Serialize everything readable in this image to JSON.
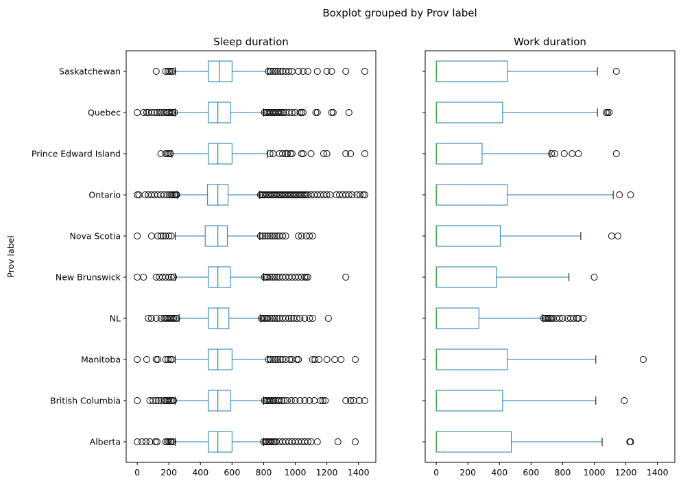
{
  "chart_data": {
    "type": "boxplot",
    "suptitle": "Boxplot grouped by Prov label",
    "ylabel": "Prov label",
    "categories": [
      "Alberta",
      "British Columbia",
      "Manitoba",
      "NL",
      "New Brunswick",
      "Nova Scotia",
      "Ontario",
      "Prince Edward Island",
      "Quebec",
      "Saskatchewan"
    ],
    "xticks": [
      0,
      200,
      400,
      600,
      800,
      1000,
      1200,
      1400
    ],
    "colors": {
      "box": "#1f77b4",
      "median": "#2ca02c",
      "outlier": "#000000"
    },
    "panels": [
      {
        "title": "Sleep duration",
        "xlim": [
          -70,
          1510
        ],
        "boxes": [
          {
            "q1": 450,
            "median": 510,
            "q3": 600,
            "whislo": 240,
            "whishi": 800,
            "fliers": [
              0,
              30,
              55,
              80,
              115,
              125,
              180,
              190,
              200,
              210,
              215,
              225,
              800,
              810,
              820,
              830,
              840,
              850,
              860,
              870,
              880,
              900,
              920,
              940,
              960,
              980,
              1000,
              1020,
              1040,
              1060,
              1080,
              1100,
              1140,
              1270,
              1380
            ]
          },
          {
            "q1": 450,
            "median": 510,
            "q3": 590,
            "whislo": 240,
            "whishi": 800,
            "fliers": [
              0,
              80,
              100,
              120,
              135,
              150,
              170,
              180,
              190,
              200,
              210,
              220,
              230,
              805,
              815,
              825,
              835,
              845,
              855,
              865,
              875,
              890,
              900,
              915,
              930,
              950,
              975,
              1000,
              1030,
              1060,
              1090,
              1120,
              1160,
              1175,
              1190,
              1320,
              1350,
              1370,
              1405,
              1440
            ]
          },
          {
            "q1": 450,
            "median": 510,
            "q3": 600,
            "whislo": 240,
            "whishi": 825,
            "fliers": [
              0,
              60,
              120,
              130,
              180,
              195,
              210,
              220,
              830,
              845,
              860,
              875,
              890,
              905,
              920,
              940,
              965,
              980,
              1010,
              1020,
              1110,
              1125,
              1150,
              1200,
              1250,
              1290,
              1380
            ]
          },
          {
            "q1": 450,
            "median": 510,
            "q3": 580,
            "whislo": 265,
            "whishi": 780,
            "fliers": [
              70,
              90,
              120,
              150,
              170,
              180,
              190,
              200,
              210,
              220,
              230,
              240,
              250,
              785,
              795,
              805,
              815,
              825,
              840,
              855,
              870,
              885,
              900,
              920,
              940,
              960,
              975,
              990,
              1010,
              1030,
              1060,
              1090,
              1110,
              1210
            ]
          },
          {
            "q1": 450,
            "median": 510,
            "q3": 590,
            "whislo": 240,
            "whishi": 800,
            "fliers": [
              0,
              40,
              120,
              140,
              160,
              180,
              200,
              215,
              230,
              805,
              815,
              825,
              840,
              855,
              870,
              885,
              900,
              920,
              940,
              960,
              980,
              1000,
              1020,
              1040,
              1060,
              1070,
              1080,
              1320
            ]
          },
          {
            "q1": 430,
            "median": 510,
            "q3": 570,
            "whislo": 240,
            "whishi": 775,
            "fliers": [
              0,
              90,
              130,
              150,
              165,
              180,
              200,
              215,
              780,
              795,
              810,
              825,
              840,
              855,
              870,
              885,
              900,
              920,
              940,
              1020,
              1040,
              1070,
              1090,
              1110
            ]
          },
          {
            "q1": 445,
            "median": 510,
            "q3": 575,
            "whislo": 255,
            "whishi": 775,
            "fliers": [
              0,
              10,
              50,
              70,
              90,
              110,
              130,
              150,
              170,
              190,
              205,
              215,
              225,
              235,
              245,
              250,
              780,
              790,
              800,
              810,
              820,
              830,
              840,
              850,
              860,
              870,
              880,
              890,
              900,
              910,
              920,
              930,
              940,
              950,
              960,
              970,
              980,
              990,
              1000,
              1010,
              1020,
              1030,
              1040,
              1050,
              1060,
              1070,
              1080,
              1100,
              1120,
              1140,
              1160,
              1180,
              1200,
              1220,
              1260,
              1280,
              1300,
              1320,
              1340,
              1360,
              1390,
              1410,
              1430,
              1440
            ]
          },
          {
            "q1": 450,
            "median": 510,
            "q3": 600,
            "whislo": 220,
            "whishi": 825,
            "fliers": [
              150,
              180,
              190,
              200,
              210,
              840,
              860,
              900,
              920,
              940,
              950,
              970,
              980,
              1040,
              1050,
              1100,
              1180,
              1200,
              1320,
              1350,
              1440
            ]
          },
          {
            "q1": 450,
            "median": 510,
            "q3": 590,
            "whislo": 240,
            "whishi": 800,
            "fliers": [
              0,
              40,
              60,
              70,
              90,
              110,
              125,
              140,
              155,
              170,
              185,
              195,
              205,
              215,
              225,
              235,
              805,
              815,
              825,
              835,
              845,
              855,
              865,
              875,
              885,
              895,
              905,
              915,
              925,
              940,
              960,
              980,
              1000,
              1030,
              1040,
              1050,
              1130,
              1140,
              1230,
              1240,
              1340
            ]
          },
          {
            "q1": 450,
            "median": 520,
            "q3": 600,
            "whislo": 240,
            "whishi": 825,
            "fliers": [
              120,
              180,
              195,
              205,
              215,
              225,
              830,
              845,
              860,
              875,
              890,
              905,
              920,
              940,
              960,
              980,
              1020,
              1050,
              1080,
              1140,
              1200,
              1230,
              1320,
              1440
            ]
          }
        ]
      },
      {
        "title": "Work duration",
        "xlim": [
          -70,
          1510
        ],
        "boxes": [
          {
            "q1": 0,
            "median": 0,
            "q3": 475,
            "whislo": 0,
            "whishi": 1050,
            "fliers": [
              1225,
              1230
            ]
          },
          {
            "q1": 0,
            "median": 0,
            "q3": 420,
            "whislo": 0,
            "whishi": 1010,
            "fliers": [
              1190
            ]
          },
          {
            "q1": 0,
            "median": 0,
            "q3": 450,
            "whislo": 0,
            "whishi": 1010,
            "fliers": [
              1310
            ]
          },
          {
            "q1": 0,
            "median": 0,
            "q3": 270,
            "whislo": 0,
            "whishi": 675,
            "fliers": [
              680,
              690,
              700,
              710,
              720,
              730,
              740,
              760,
              780,
              800,
              830,
              850,
              870,
              890,
              900,
              930
            ]
          },
          {
            "q1": 0,
            "median": 0,
            "q3": 380,
            "whislo": 0,
            "whishi": 840,
            "fliers": [
              1000
            ]
          },
          {
            "q1": 0,
            "median": 0,
            "q3": 405,
            "whislo": 0,
            "whishi": 915,
            "fliers": [
              1110,
              1150
            ]
          },
          {
            "q1": 0,
            "median": 0,
            "q3": 450,
            "whislo": 0,
            "whishi": 1120,
            "fliers": [
              1160,
              1230
            ]
          },
          {
            "q1": 0,
            "median": 0,
            "q3": 290,
            "whislo": 0,
            "whishi": 720,
            "fliers": [
              730,
              750,
              810,
              860,
              900,
              1140
            ]
          },
          {
            "q1": 0,
            "median": 0,
            "q3": 420,
            "whislo": 0,
            "whishi": 1020,
            "fliers": [
              1075,
              1085,
              1095
            ]
          },
          {
            "q1": 0,
            "median": 0,
            "q3": 450,
            "whislo": 0,
            "whishi": 1020,
            "fliers": [
              1140
            ]
          }
        ]
      }
    ]
  }
}
